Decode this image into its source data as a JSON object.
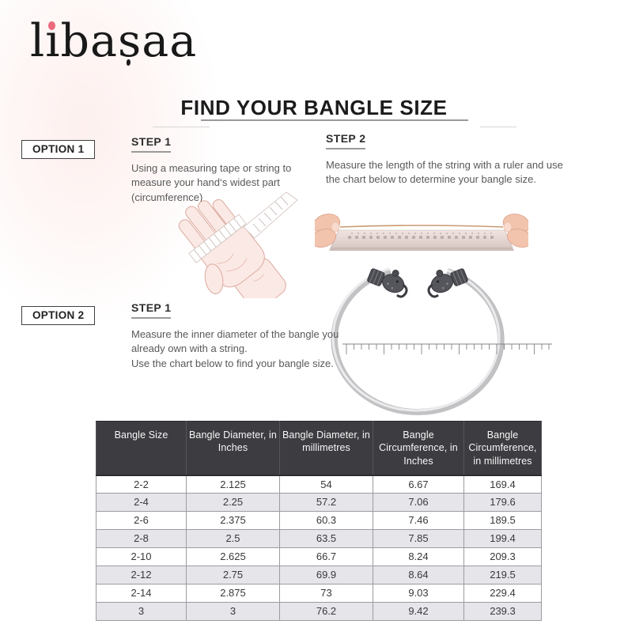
{
  "brand": {
    "logo_part1": "l",
    "logo_i": "ı",
    "logo_part2": "ba",
    "logo_s": "s",
    "logo_part3": "aa",
    "dot_color": "#ec6a7c"
  },
  "title": "FIND YOUR BANGLE SIZE",
  "option1": {
    "label": "OPTION 1",
    "step1": {
      "heading": "STEP 1",
      "text": "Using a measuring tape or string to measure your hand‘s widest part (circumference)"
    },
    "step2": {
      "heading": "STEP 2",
      "text": "Measure the length of the string with a ruler and use the chart below to determine your bangle size."
    }
  },
  "option2": {
    "label": "OPTION 2",
    "step1": {
      "heading": "STEP 1",
      "text_line1": "Measure the inner diameter of the bangle you already own with a string.",
      "text_line2": "Use the chart below to find your bangle size."
    }
  },
  "illustrations": {
    "hand": "hand-with-measuring-tape",
    "string": "hands-stretching-string-over-ruler",
    "bangle": "silver-bangle-with-ruler"
  },
  "table": {
    "headers": [
      "Bangle Size",
      "Bangle Diameter, in Inches",
      "Bangle Diameter, in millimetres",
      "Bangle Circumference, in Inches",
      "Bangle Circumference, in millimetres"
    ],
    "rows": [
      [
        "2-2",
        "2.125",
        "54",
        "6.67",
        "169.4"
      ],
      [
        "2-4",
        "2.25",
        "57.2",
        "7.06",
        "179.6"
      ],
      [
        "2-6",
        "2.375",
        "60.3",
        "7.46",
        "189.5"
      ],
      [
        "2-8",
        "2.5",
        "63.5",
        "7.85",
        "199.4"
      ],
      [
        "2-10",
        "2.625",
        "66.7",
        "8.24",
        "209.3"
      ],
      [
        "2-12",
        "2.75",
        "69.9",
        "8.64",
        "219.5"
      ],
      [
        "2-14",
        "2.875",
        "73",
        "9.03",
        "229.4"
      ],
      [
        "3",
        "3",
        "76.2",
        "9.42",
        "239.3"
      ]
    ],
    "colors": {
      "header_bg": "#3d3c41",
      "header_text": "#f7f7f7",
      "alt_row_bg": "#e6e5ea",
      "border": "#9b9ba1"
    }
  }
}
